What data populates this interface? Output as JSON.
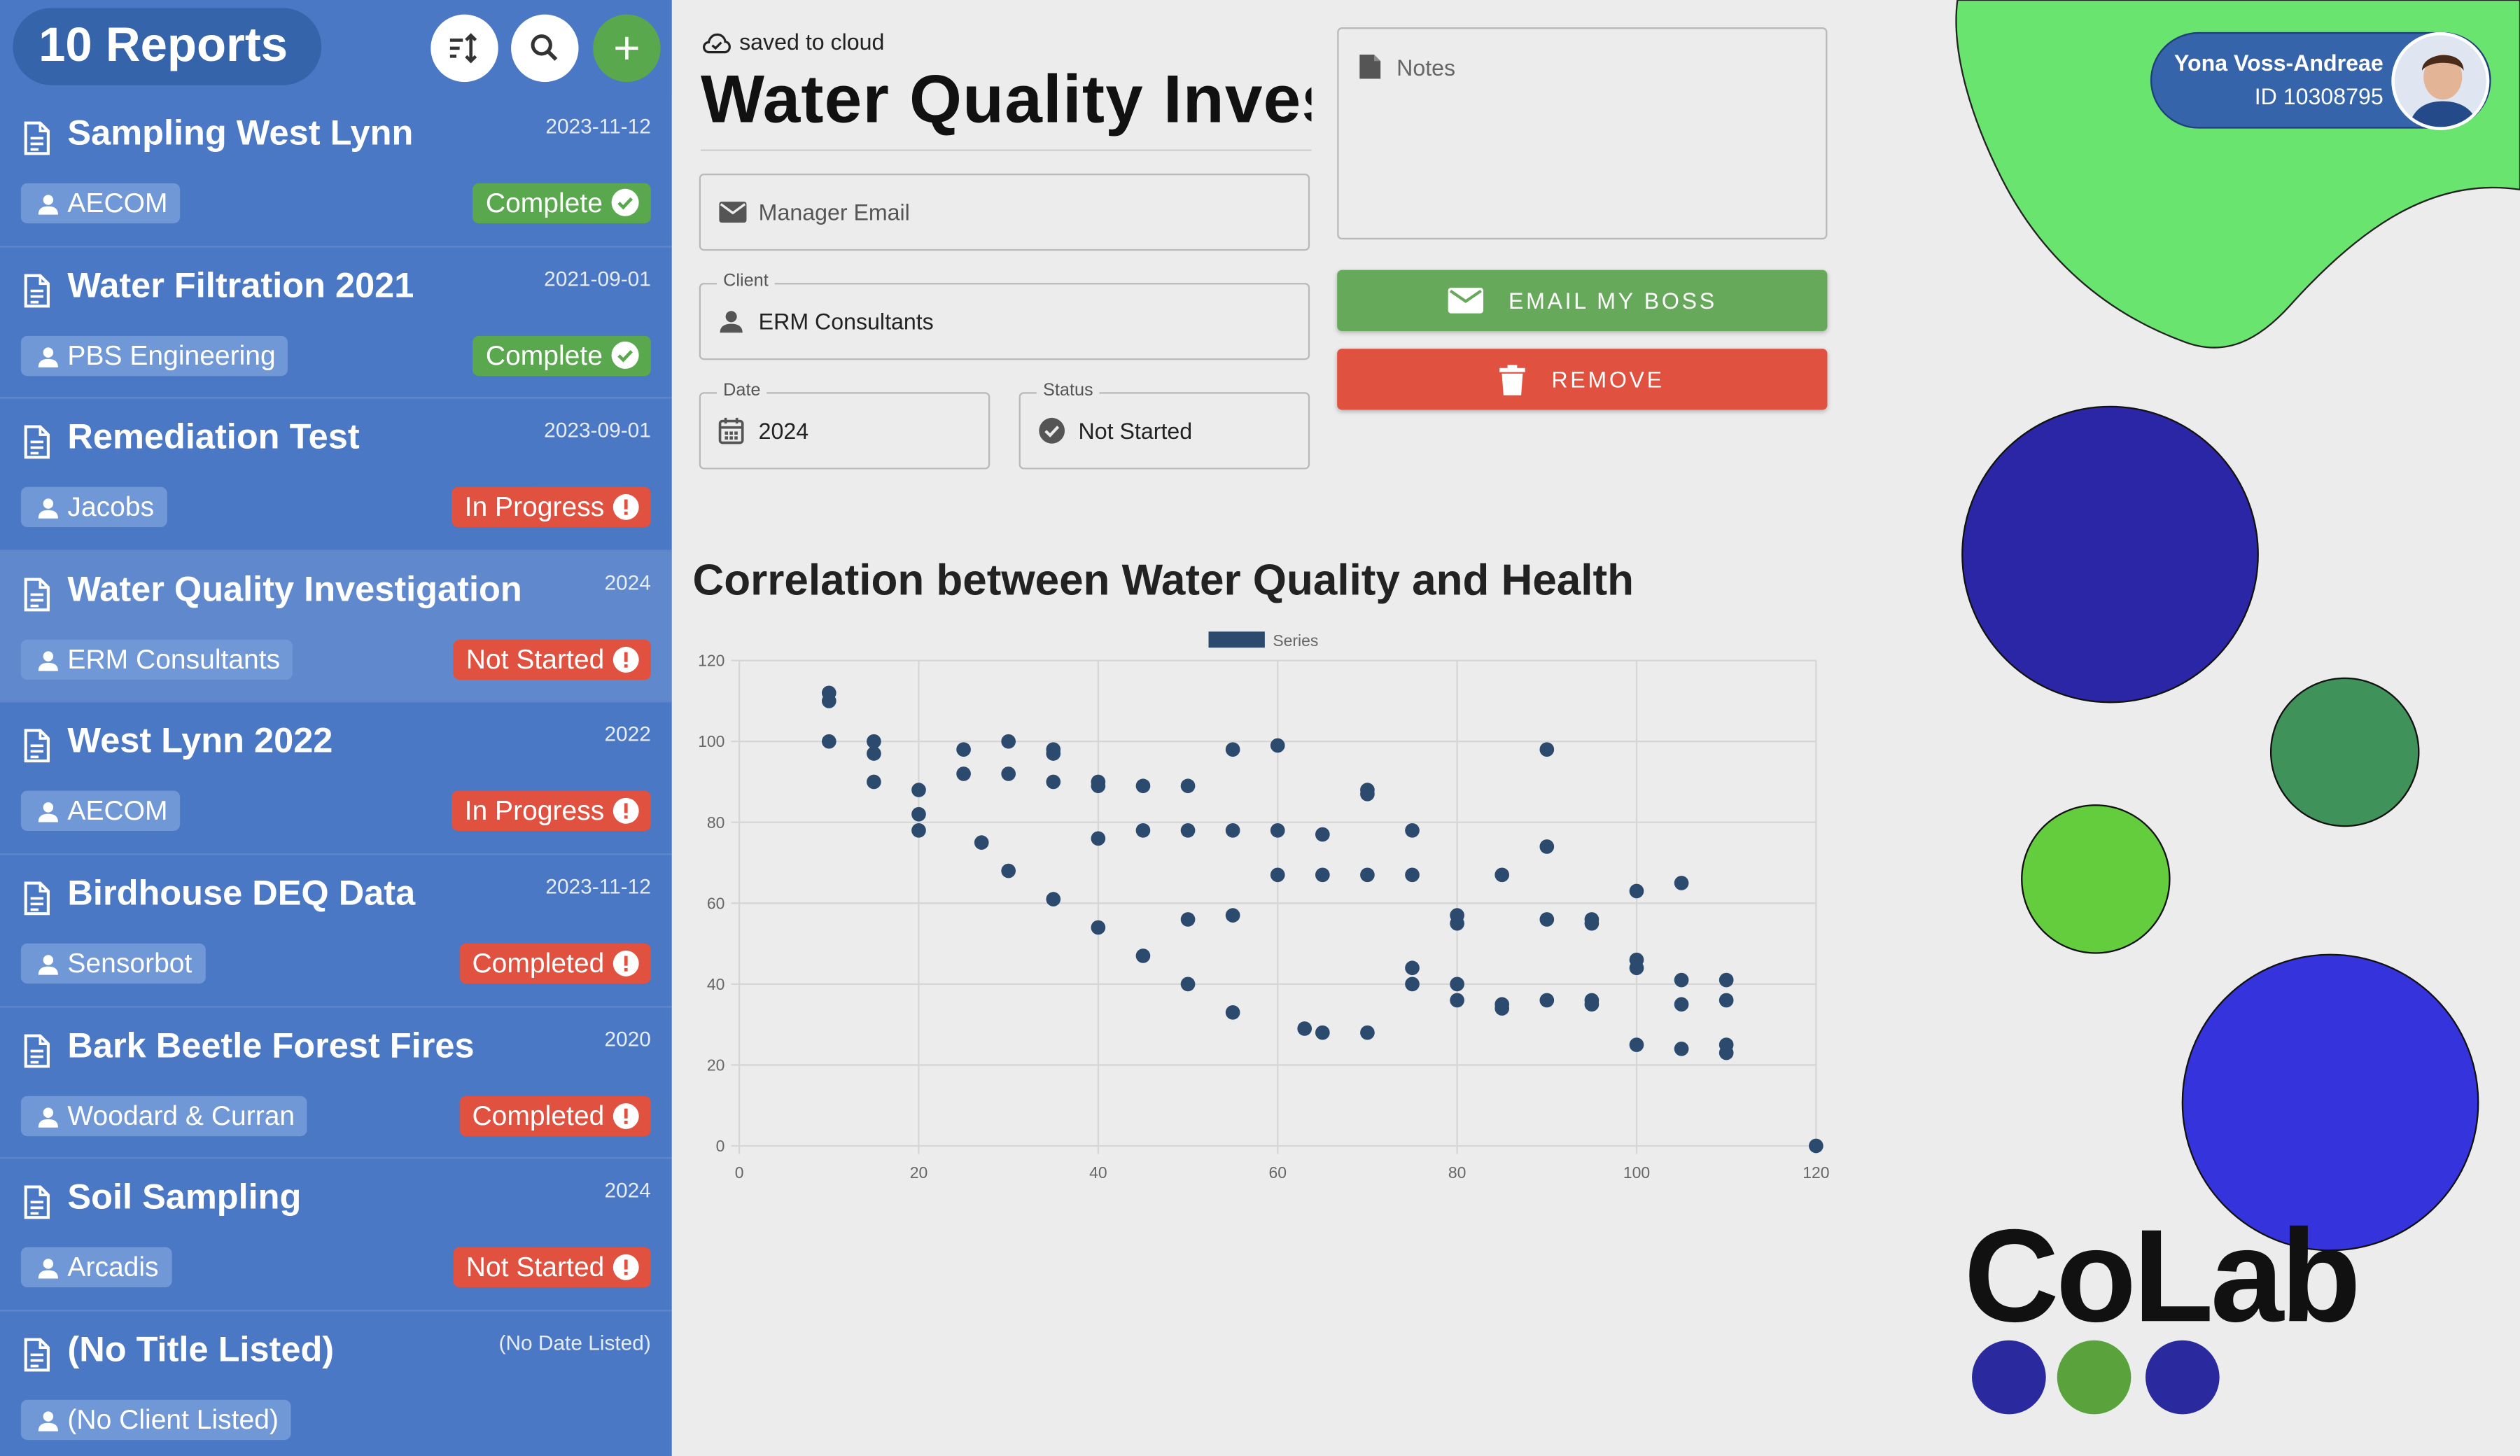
{
  "sidebar": {
    "title": "10 Reports",
    "items": [
      {
        "title": "Sampling West Lynn",
        "date": "2023-11-12",
        "client": "AECOM",
        "status": "Complete",
        "status_kind": "ok",
        "selected": false
      },
      {
        "title": "Water Filtration 2021",
        "date": "2021-09-01",
        "client": "PBS Engineering",
        "status": "Complete",
        "status_kind": "ok",
        "selected": false
      },
      {
        "title": "Remediation Test",
        "date": "2023-09-01",
        "client": "Jacobs",
        "status": "In Progress",
        "status_kind": "alert",
        "selected": false
      },
      {
        "title": "Water Quality Investigation",
        "date": "2024",
        "client": "ERM Consultants",
        "status": "Not Started",
        "status_kind": "alert",
        "selected": true
      },
      {
        "title": "West Lynn 2022",
        "date": "2022",
        "client": "AECOM",
        "status": "In Progress",
        "status_kind": "alert",
        "selected": false
      },
      {
        "title": "Birdhouse DEQ Data",
        "date": "2023-11-12",
        "client": "Sensorbot",
        "status": "Completed",
        "status_kind": "alert",
        "selected": false
      },
      {
        "title": "Bark Beetle Forest Fires",
        "date": "2020",
        "client": "Woodard & Curran",
        "status": "Completed",
        "status_kind": "alert",
        "selected": false
      },
      {
        "title": "Soil Sampling",
        "date": "2024",
        "client": "Arcadis",
        "status": "Not Started",
        "status_kind": "alert",
        "selected": false
      },
      {
        "title": "(No Title Listed)",
        "date": "(No Date Listed)",
        "client": "(No Client Listed)",
        "status": "",
        "status_kind": "none",
        "selected": false
      }
    ]
  },
  "report": {
    "saved_text": "saved to cloud",
    "title": "Water Quality Investigation",
    "manager_email_placeholder": "Manager Email",
    "client_label": "Client",
    "client": "ERM Consultants",
    "date_label": "Date",
    "date": "2024",
    "status_label": "Status",
    "status": "Not Started",
    "notes_placeholder": "Notes",
    "email_button": "EMAIL MY BOSS",
    "remove_button": "REMOVE"
  },
  "user": {
    "name": "Yona Voss-Andreae",
    "id": "ID 10308795"
  },
  "brand": "CoLab",
  "colors": {
    "sidebar": "#4a78c4",
    "ok": "#5aa84d",
    "alert": "#e05140",
    "email_button": "#67a95a",
    "remove_button": "#e05140",
    "marker": "#2b4a6e"
  },
  "chart_data": {
    "type": "scatter",
    "title": "Correlation between Water Quality and Health",
    "legend": [
      "Series"
    ],
    "legend_position": "top",
    "xlim": [
      0,
      120
    ],
    "ylim": [
      0,
      120
    ],
    "xticks": [
      0,
      20,
      40,
      60,
      80,
      100,
      120
    ],
    "yticks": [
      0,
      20,
      40,
      60,
      80,
      100,
      120
    ],
    "grid": true,
    "series": [
      {
        "name": "Series",
        "points": [
          [
            10,
            112
          ],
          [
            10,
            110
          ],
          [
            10,
            100
          ],
          [
            15,
            100
          ],
          [
            15,
            97
          ],
          [
            15,
            90
          ],
          [
            20,
            88
          ],
          [
            20,
            82
          ],
          [
            20,
            78
          ],
          [
            25,
            98
          ],
          [
            25,
            92
          ],
          [
            27,
            75
          ],
          [
            30,
            100
          ],
          [
            30,
            92
          ],
          [
            30,
            68
          ],
          [
            35,
            98
          ],
          [
            35,
            97
          ],
          [
            35,
            90
          ],
          [
            35,
            61
          ],
          [
            40,
            90
          ],
          [
            40,
            89
          ],
          [
            40,
            76
          ],
          [
            40,
            54
          ],
          [
            45,
            89
          ],
          [
            45,
            78
          ],
          [
            45,
            47
          ],
          [
            50,
            89
          ],
          [
            50,
            78
          ],
          [
            50,
            56
          ],
          [
            50,
            40
          ],
          [
            55,
            98
          ],
          [
            55,
            78
          ],
          [
            55,
            57
          ],
          [
            55,
            33
          ],
          [
            60,
            99
          ],
          [
            60,
            78
          ],
          [
            60,
            67
          ],
          [
            63,
            29
          ],
          [
            65,
            77
          ],
          [
            65,
            67
          ],
          [
            65,
            28
          ],
          [
            70,
            88
          ],
          [
            70,
            87
          ],
          [
            70,
            67
          ],
          [
            70,
            28
          ],
          [
            75,
            78
          ],
          [
            75,
            67
          ],
          [
            75,
            44
          ],
          [
            75,
            40
          ],
          [
            80,
            57
          ],
          [
            80,
            55
          ],
          [
            80,
            40
          ],
          [
            80,
            36
          ],
          [
            85,
            67
          ],
          [
            85,
            35
          ],
          [
            85,
            34
          ],
          [
            90,
            98
          ],
          [
            90,
            74
          ],
          [
            90,
            56
          ],
          [
            90,
            36
          ],
          [
            95,
            56
          ],
          [
            95,
            55
          ],
          [
            95,
            36
          ],
          [
            95,
            35
          ],
          [
            100,
            63
          ],
          [
            100,
            46
          ],
          [
            100,
            44
          ],
          [
            100,
            25
          ],
          [
            105,
            65
          ],
          [
            105,
            41
          ],
          [
            105,
            35
          ],
          [
            105,
            24
          ],
          [
            110,
            41
          ],
          [
            110,
            36
          ],
          [
            110,
            25
          ],
          [
            110,
            23
          ],
          [
            120,
            0
          ]
        ]
      }
    ]
  }
}
